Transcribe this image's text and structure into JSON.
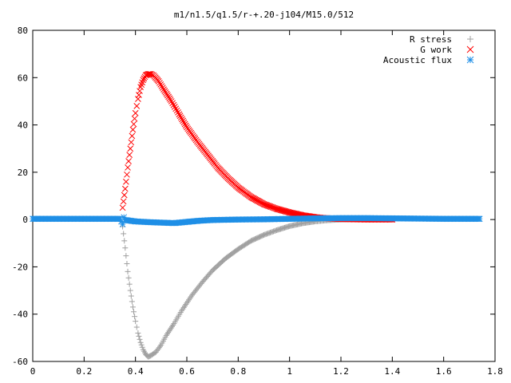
{
  "chart_data": {
    "type": "scatter",
    "title": "m1/n1.5/q1.5/r-+.20-j104/M15.0/512",
    "xlabel": "",
    "ylabel": "",
    "xlim": [
      0,
      1.8
    ],
    "ylim": [
      -60,
      80
    ],
    "x_ticks": [
      0,
      0.2,
      0.4,
      0.6,
      0.8,
      1,
      1.2,
      1.4,
      1.6,
      1.8
    ],
    "x_tick_labels": [
      "0",
      "0.2",
      "0.4",
      "0.6",
      "0.8",
      "1",
      "1.2",
      "1.4",
      "1.6",
      "1.8"
    ],
    "y_ticks": [
      -60,
      -40,
      -20,
      0,
      20,
      40,
      60,
      80
    ],
    "y_tick_labels": [
      "-60",
      "-40",
      "-20",
      "0",
      "20",
      "40",
      "60",
      "80"
    ],
    "grid": false,
    "legend_position": "top-right",
    "series": [
      {
        "name": "R stress",
        "marker": "+",
        "color": "#a0a0a0",
        "points": [
          [
            0.35,
            -3
          ],
          [
            0.36,
            -12
          ],
          [
            0.37,
            -22
          ],
          [
            0.38,
            -30
          ],
          [
            0.39,
            -37
          ],
          [
            0.4,
            -43
          ],
          [
            0.41,
            -48
          ],
          [
            0.42,
            -52
          ],
          [
            0.43,
            -55
          ],
          [
            0.44,
            -57
          ],
          [
            0.45,
            -58
          ],
          [
            0.46,
            -57.5
          ],
          [
            0.48,
            -56
          ],
          [
            0.5,
            -53
          ],
          [
            0.52,
            -49
          ],
          [
            0.55,
            -44
          ],
          [
            0.58,
            -38.5
          ],
          [
            0.62,
            -32
          ],
          [
            0.66,
            -26.5
          ],
          [
            0.7,
            -21.5
          ],
          [
            0.75,
            -16.5
          ],
          [
            0.8,
            -12.5
          ],
          [
            0.85,
            -9
          ],
          [
            0.9,
            -6.5
          ],
          [
            0.95,
            -4.5
          ],
          [
            1.0,
            -2.8
          ],
          [
            1.05,
            -1.6
          ],
          [
            1.1,
            -0.8
          ],
          [
            1.15,
            -0.3
          ],
          [
            1.2,
            0
          ],
          [
            1.3,
            0.2
          ],
          [
            1.4,
            0.2
          ]
        ]
      },
      {
        "name": "G work",
        "marker": "x",
        "color": "#ff0000",
        "points": [
          [
            0.35,
            5
          ],
          [
            0.36,
            13
          ],
          [
            0.37,
            22
          ],
          [
            0.38,
            30
          ],
          [
            0.39,
            38
          ],
          [
            0.4,
            45
          ],
          [
            0.41,
            51
          ],
          [
            0.42,
            56
          ],
          [
            0.43,
            59
          ],
          [
            0.44,
            61
          ],
          [
            0.45,
            61.5
          ],
          [
            0.46,
            61.5
          ],
          [
            0.47,
            61
          ],
          [
            0.49,
            58.5
          ],
          [
            0.51,
            55
          ],
          [
            0.54,
            50
          ],
          [
            0.57,
            44.5
          ],
          [
            0.6,
            39
          ],
          [
            0.64,
            33
          ],
          [
            0.68,
            27.5
          ],
          [
            0.72,
            22
          ],
          [
            0.76,
            17.5
          ],
          [
            0.8,
            13.5
          ],
          [
            0.85,
            9.5
          ],
          [
            0.9,
            6.5
          ],
          [
            0.95,
            4.5
          ],
          [
            1.0,
            3
          ],
          [
            1.05,
            1.8
          ],
          [
            1.1,
            1
          ],
          [
            1.15,
            0.5
          ],
          [
            1.2,
            0.2
          ],
          [
            1.3,
            0
          ],
          [
            1.4,
            0
          ]
        ]
      },
      {
        "name": "Acoustic flux",
        "marker": "*",
        "color": "#1f8fe6",
        "points": [
          [
            0.0,
            0.3
          ],
          [
            0.1,
            0.3
          ],
          [
            0.2,
            0.3
          ],
          [
            0.3,
            0.3
          ],
          [
            0.34,
            0.3
          ],
          [
            0.35,
            -2
          ],
          [
            0.355,
            1
          ],
          [
            0.36,
            -0.2
          ],
          [
            0.4,
            -0.8
          ],
          [
            0.45,
            -1.1
          ],
          [
            0.5,
            -1.3
          ],
          [
            0.55,
            -1.5
          ],
          [
            0.6,
            -1
          ],
          [
            0.65,
            -0.5
          ],
          [
            0.7,
            -0.2
          ],
          [
            0.8,
            0
          ],
          [
            0.9,
            0.1
          ],
          [
            1.0,
            0.3
          ],
          [
            1.1,
            0.5
          ],
          [
            1.2,
            0.6
          ],
          [
            1.3,
            0.6
          ],
          [
            1.4,
            0.5
          ],
          [
            1.5,
            0.4
          ],
          [
            1.6,
            0.3
          ],
          [
            1.7,
            0.3
          ],
          [
            1.74,
            0.3
          ]
        ]
      }
    ]
  }
}
